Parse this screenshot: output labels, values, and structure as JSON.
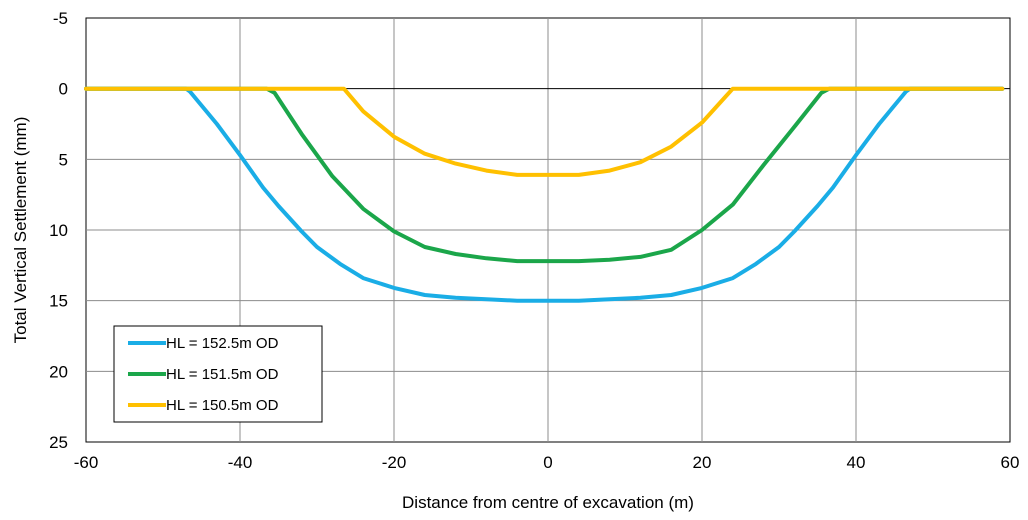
{
  "chart_data": {
    "type": "line",
    "title": "",
    "xlabel": "Distance from centre of excavation (m)",
    "ylabel": "Total Vertical Settlement (mm)",
    "xlim": [
      -60,
      60
    ],
    "ylim": [
      -5,
      25
    ],
    "y_inverted": true,
    "xticks": [
      -60,
      -40,
      -20,
      0,
      20,
      40,
      60
    ],
    "yticks": [
      -5,
      0,
      5,
      10,
      15,
      20,
      25
    ],
    "xtick_labels": [
      "-60",
      "-40",
      "-20",
      "0",
      "20",
      "40",
      "60"
    ],
    "ytick_labels": [
      "-5",
      "0",
      "5",
      "10",
      "15",
      "20",
      "25"
    ],
    "grid": true,
    "legend_position": "bottom-left",
    "series": [
      {
        "name": "HL = 152.5m OD",
        "color": "#1AADE6",
        "x": [
          -60,
          -47,
          -46.5,
          -43,
          -40,
          -37,
          -35,
          -32,
          -30,
          -27,
          -24,
          -20,
          -16,
          -12,
          -8,
          -4,
          0,
          4,
          8,
          12,
          16,
          20,
          24,
          27,
          30,
          32,
          35,
          37,
          40,
          43,
          46.5,
          47,
          59
        ],
        "y": [
          0,
          0,
          0.2,
          2.5,
          4.7,
          7,
          8.3,
          10.1,
          11.2,
          12.4,
          13.4,
          14.1,
          14.6,
          14.8,
          14.9,
          15,
          15,
          15,
          14.9,
          14.8,
          14.6,
          14.1,
          13.4,
          12.4,
          11.2,
          10.1,
          8.3,
          7,
          4.7,
          2.5,
          0.2,
          0,
          0
        ]
      },
      {
        "name": "HL = 151.5m OD",
        "color": "#1BA64A",
        "x": [
          -60,
          -36.5,
          -35.5,
          -32,
          -28,
          -24,
          -20,
          -16,
          -12,
          -8,
          -4,
          0,
          4,
          8,
          12,
          16,
          20,
          24,
          28,
          32,
          35.5,
          36.5,
          59
        ],
        "y": [
          0,
          0,
          0.3,
          3.2,
          6.2,
          8.5,
          10.1,
          11.2,
          11.7,
          12,
          12.2,
          12.2,
          12.2,
          12.1,
          11.9,
          11.4,
          10,
          8.2,
          5.4,
          2.7,
          0.3,
          0,
          0
        ]
      },
      {
        "name": "HL = 150.5m OD",
        "color": "#FFC000",
        "x": [
          -60,
          -26.5,
          -24,
          -20,
          -16,
          -12,
          -8,
          -4,
          0,
          4,
          8,
          12,
          16,
          20,
          23,
          24,
          59
        ],
        "y": [
          0,
          0,
          1.6,
          3.4,
          4.6,
          5.3,
          5.8,
          6.1,
          6.1,
          6.1,
          5.8,
          5.2,
          4.1,
          2.4,
          0.6,
          0,
          0
        ]
      }
    ]
  }
}
